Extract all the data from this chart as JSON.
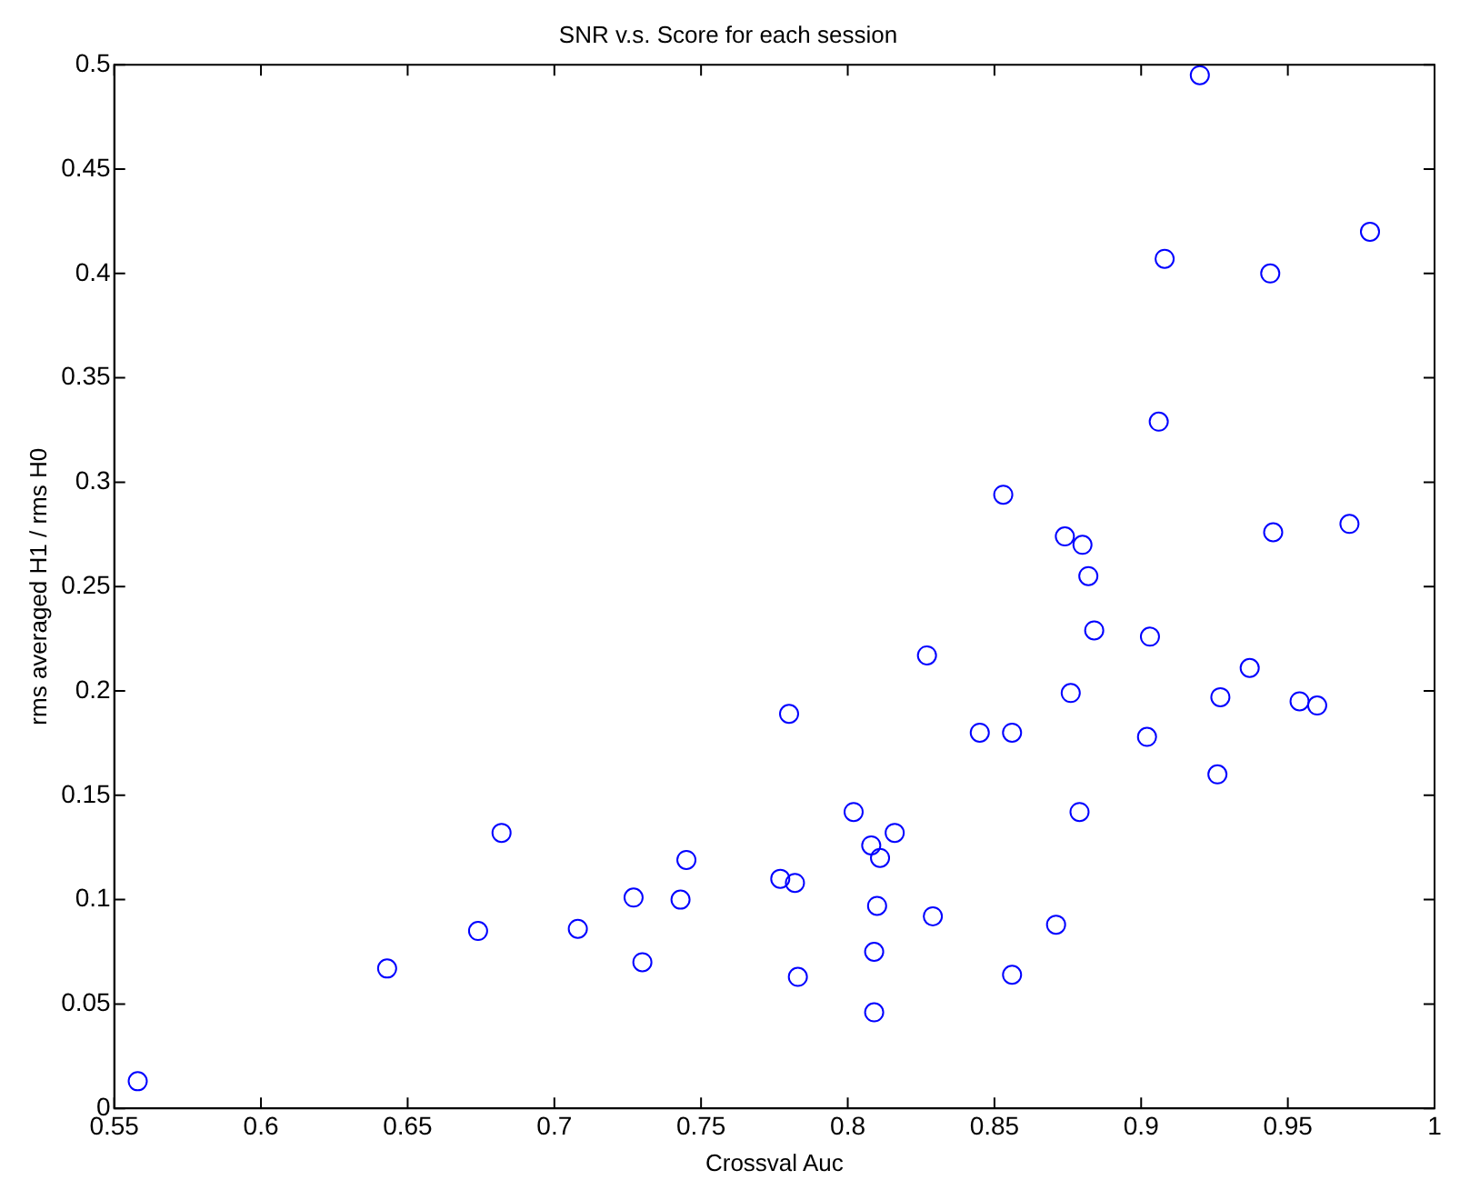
{
  "chart_data": {
    "type": "scatter",
    "title": "SNR v.s. Score for each session",
    "xlabel": "Crossval Auc",
    "ylabel": "rms averaged H1 / rms H0",
    "marker": "circle",
    "grid": false,
    "legend": false,
    "xlim": [
      0.55,
      1
    ],
    "xticks": [
      0.55,
      0.6,
      0.65,
      0.7,
      0.75,
      0.8,
      0.85,
      0.9,
      0.95,
      1
    ],
    "ylim": [
      0,
      0.5
    ],
    "yticks": [
      0,
      0.05,
      0.1,
      0.15,
      0.2,
      0.25,
      0.3,
      0.35,
      0.4,
      0.45,
      0.5
    ],
    "series": [
      {
        "color": "#0000ff",
        "x": [
          0.558,
          0.643,
          0.674,
          0.682,
          0.708,
          0.727,
          0.73,
          0.743,
          0.745,
          0.777,
          0.78,
          0.782,
          0.783,
          0.802,
          0.808,
          0.811,
          0.816,
          0.81,
          0.809,
          0.809,
          0.827,
          0.829,
          0.845,
          0.853,
          0.856,
          0.856,
          0.871,
          0.874,
          0.876,
          0.88,
          0.882,
          0.879,
          0.884,
          0.902,
          0.903,
          0.906,
          0.908,
          0.92,
          0.926,
          0.927,
          0.937,
          0.944,
          0.945,
          0.954,
          0.96,
          0.971,
          0.978
        ],
        "values": [
          0.013,
          0.067,
          0.085,
          0.132,
          0.086,
          0.101,
          0.07,
          0.1,
          0.119,
          0.11,
          0.189,
          0.108,
          0.063,
          0.142,
          0.126,
          0.12,
          0.132,
          0.097,
          0.075,
          0.046,
          0.217,
          0.092,
          0.18,
          0.294,
          0.18,
          0.064,
          0.088,
          0.274,
          0.199,
          0.27,
          0.255,
          0.142,
          0.229,
          0.178,
          0.226,
          0.329,
          0.407,
          0.495,
          0.16,
          0.197,
          0.211,
          0.4,
          0.276,
          0.195,
          0.193,
          0.28,
          0.42
        ]
      }
    ]
  }
}
